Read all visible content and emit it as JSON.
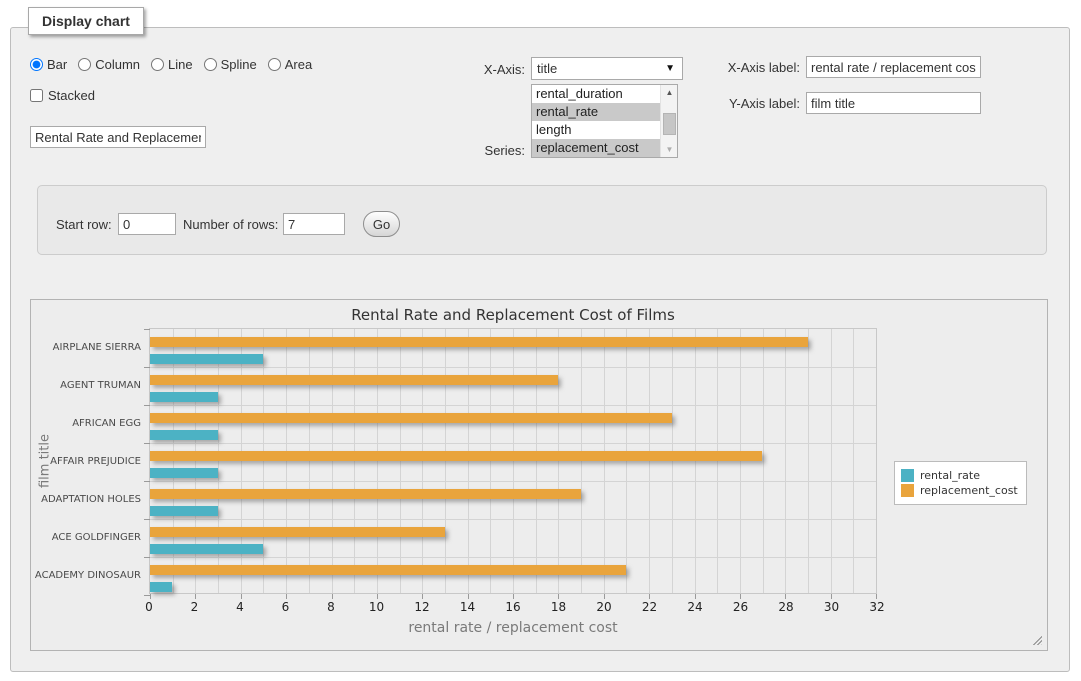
{
  "fieldset": {
    "legend": "Display chart"
  },
  "chart_type": {
    "options": [
      {
        "label": "Bar",
        "selected": true
      },
      {
        "label": "Column",
        "selected": false
      },
      {
        "label": "Line",
        "selected": false
      },
      {
        "label": "Spline",
        "selected": false
      },
      {
        "label": "Area",
        "selected": false
      }
    ]
  },
  "stacked": {
    "label": "Stacked",
    "checked": false
  },
  "chart_title_input": {
    "value": "Rental Rate and Replacement Cost of Films"
  },
  "x_axis_select": {
    "label": "X-Axis:",
    "value": "title"
  },
  "series_list": {
    "label": "Series:",
    "options": [
      {
        "label": "rental_duration",
        "selected": false
      },
      {
        "label": "rental_rate",
        "selected": true
      },
      {
        "label": "length",
        "selected": false
      },
      {
        "label": "replacement_cost",
        "selected": true
      }
    ]
  },
  "x_axis_label_input": {
    "label": "X-Axis label:",
    "value": "rental rate / replacement cost"
  },
  "y_axis_label_input": {
    "label": "Y-Axis label:",
    "value": "film title"
  },
  "row_controls": {
    "start_row_label": "Start row:",
    "start_row_value": "0",
    "number_of_rows_label": "Number of rows:",
    "number_of_rows_value": "7",
    "go_label": "Go"
  },
  "chart_data": {
    "type": "bar",
    "orientation": "horizontal",
    "title": "Rental Rate and Replacement Cost of Films",
    "categories": [
      "AIRPLANE SIERRA",
      "AGENT TRUMAN",
      "AFRICAN EGG",
      "AFFAIR PREJUDICE",
      "ADAPTATION HOLES",
      "ACE GOLDFINGER",
      "ACADEMY DINOSAUR"
    ],
    "series": [
      {
        "name": "rental_rate",
        "color": "#4CB2C4",
        "values": [
          4.99,
          2.99,
          2.99,
          2.99,
          2.99,
          4.99,
          0.99
        ]
      },
      {
        "name": "replacement_cost",
        "color": "#E9A43C",
        "values": [
          28.99,
          17.99,
          22.99,
          26.99,
          18.99,
          12.99,
          20.99
        ]
      }
    ],
    "xlabel": "rental rate / replacement cost",
    "ylabel": "film title",
    "xlim": [
      0,
      32
    ],
    "x_tick_step": 2,
    "gridline_step": 1,
    "grid": true,
    "legend_position": "right"
  }
}
